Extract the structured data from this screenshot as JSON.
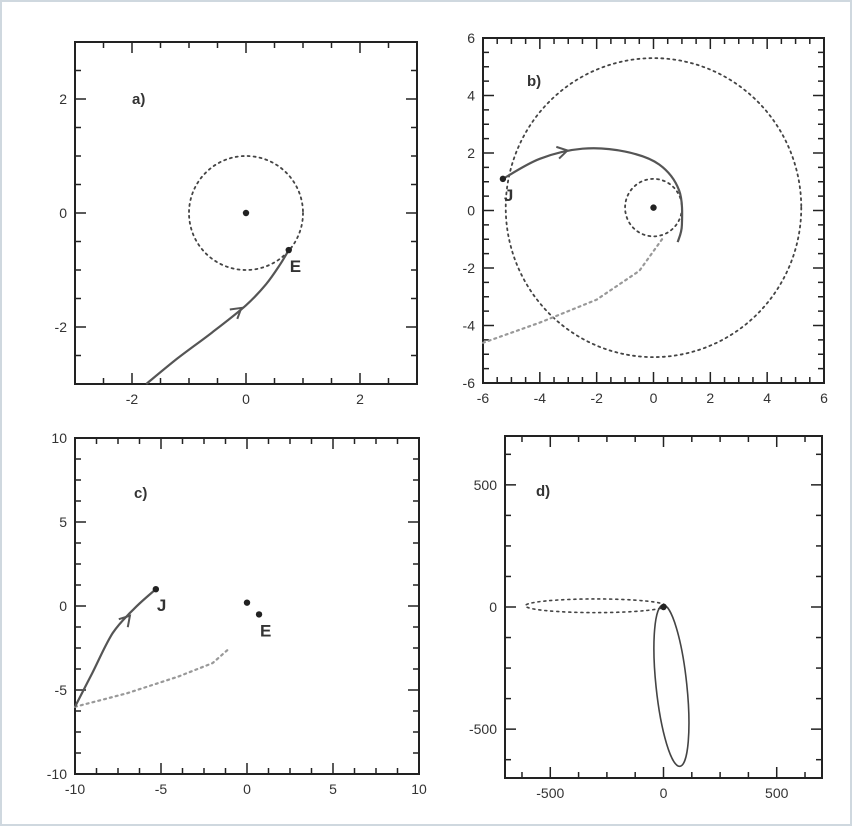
{
  "chart_data": [
    {
      "type": "line",
      "panel_label": "a)",
      "xlim": [
        -3,
        3
      ],
      "ylim": [
        -3,
        3
      ],
      "xticks": [
        -2,
        0,
        2
      ],
      "yticks": [
        -2,
        0,
        2
      ],
      "xtick_labels": [
        "-2",
        "0",
        "2"
      ],
      "ytick_labels": [
        "-2",
        "0",
        "2"
      ],
      "center_point": [
        0,
        0
      ],
      "orbits": [
        {
          "style": "dotted",
          "radius": 1.0
        }
      ],
      "trajectory": [
        [
          -1.75,
          -3.0
        ],
        [
          -1.2,
          -2.55
        ],
        [
          -0.6,
          -2.1
        ],
        [
          0.0,
          -1.62
        ],
        [
          0.35,
          -1.25
        ],
        [
          0.6,
          -0.9
        ],
        [
          0.75,
          -0.65
        ]
      ],
      "arrow_at": [
        -0.15,
        -1.72
      ],
      "points": [
        {
          "label": "E",
          "x": 0.75,
          "y": -0.65
        }
      ]
    },
    {
      "type": "line",
      "panel_label": "b)",
      "xlim": [
        -6,
        6
      ],
      "ylim": [
        -6,
        6
      ],
      "xticks": [
        -6,
        -4,
        -2,
        0,
        2,
        4,
        6
      ],
      "yticks": [
        -6,
        -4,
        -2,
        0,
        2,
        4,
        6
      ],
      "xtick_labels": [
        "-6",
        "-4",
        "-2",
        "0",
        "2",
        "4",
        "6"
      ],
      "ytick_labels": [
        "-6",
        "-4",
        "-2",
        "0",
        "2",
        "4",
        "6"
      ],
      "center_point": [
        0,
        0.1
      ],
      "orbits": [
        {
          "style": "dotted",
          "radius": 1.0
        },
        {
          "style": "dotted",
          "radius": 5.2
        }
      ],
      "dashed_path": [
        [
          -6.0,
          -4.6
        ],
        [
          -4.0,
          -3.9
        ],
        [
          -2.0,
          -3.1
        ],
        [
          -0.5,
          -2.1
        ],
        [
          0.3,
          -1.0
        ]
      ],
      "trajectory": [
        [
          -5.3,
          1.1
        ],
        [
          -4.0,
          1.8
        ],
        [
          -2.5,
          2.15
        ],
        [
          -1.0,
          2.05
        ],
        [
          0.2,
          1.6
        ],
        [
          0.9,
          0.7
        ],
        [
          1.0,
          -0.5
        ],
        [
          0.85,
          -1.1
        ]
      ],
      "arrow_at": [
        -3.2,
        2.05
      ],
      "points": [
        {
          "label": "J",
          "x": -5.3,
          "y": 1.1
        }
      ]
    },
    {
      "type": "line",
      "panel_label": "c)",
      "xlim": [
        -10,
        10
      ],
      "ylim": [
        -10,
        10
      ],
      "xticks": [
        -10,
        -5,
        0,
        5,
        10
      ],
      "yticks": [
        -10,
        -5,
        0,
        5,
        10
      ],
      "xtick_labels": [
        "-10",
        "-5",
        "0",
        "5",
        "10"
      ],
      "ytick_labels": [
        "-10",
        "-5",
        "0",
        "5",
        "10"
      ],
      "center_point": [
        0,
        0.2
      ],
      "dashed_path": [
        [
          -10.0,
          -6.0
        ],
        [
          -7.0,
          -5.2
        ],
        [
          -4.0,
          -4.2
        ],
        [
          -2.0,
          -3.4
        ],
        [
          -1.0,
          -2.5
        ]
      ],
      "trajectory": [
        [
          -10.0,
          -6.0
        ],
        [
          -9.0,
          -4.0
        ],
        [
          -7.8,
          -1.6
        ],
        [
          -6.5,
          -0.1
        ],
        [
          -5.3,
          1.0
        ]
      ],
      "arrow_at": [
        -7.0,
        -0.8
      ],
      "points": [
        {
          "label": "J",
          "x": -5.3,
          "y": 1.0
        },
        {
          "label": "E",
          "x": 0.7,
          "y": -0.5
        }
      ]
    },
    {
      "type": "line",
      "panel_label": "d)",
      "xlim": [
        -700,
        700
      ],
      "ylim": [
        -700,
        700
      ],
      "xticks": [
        -500,
        0,
        500
      ],
      "yticks": [
        -500,
        0,
        500
      ],
      "xtick_labels": [
        "-500",
        "0",
        "500"
      ],
      "ytick_labels": [
        "-500",
        "0",
        "500"
      ],
      "ellipses": [
        {
          "style": "dotted",
          "cx": -300,
          "cy": 5,
          "rx": 310,
          "ry": 28
        },
        {
          "style": "solid",
          "cx": 35,
          "cy": -322,
          "rx": 68,
          "ry": 332,
          "rotation": -6
        }
      ],
      "points": [
        {
          "label": "",
          "x": 0,
          "y": 0
        }
      ]
    }
  ]
}
